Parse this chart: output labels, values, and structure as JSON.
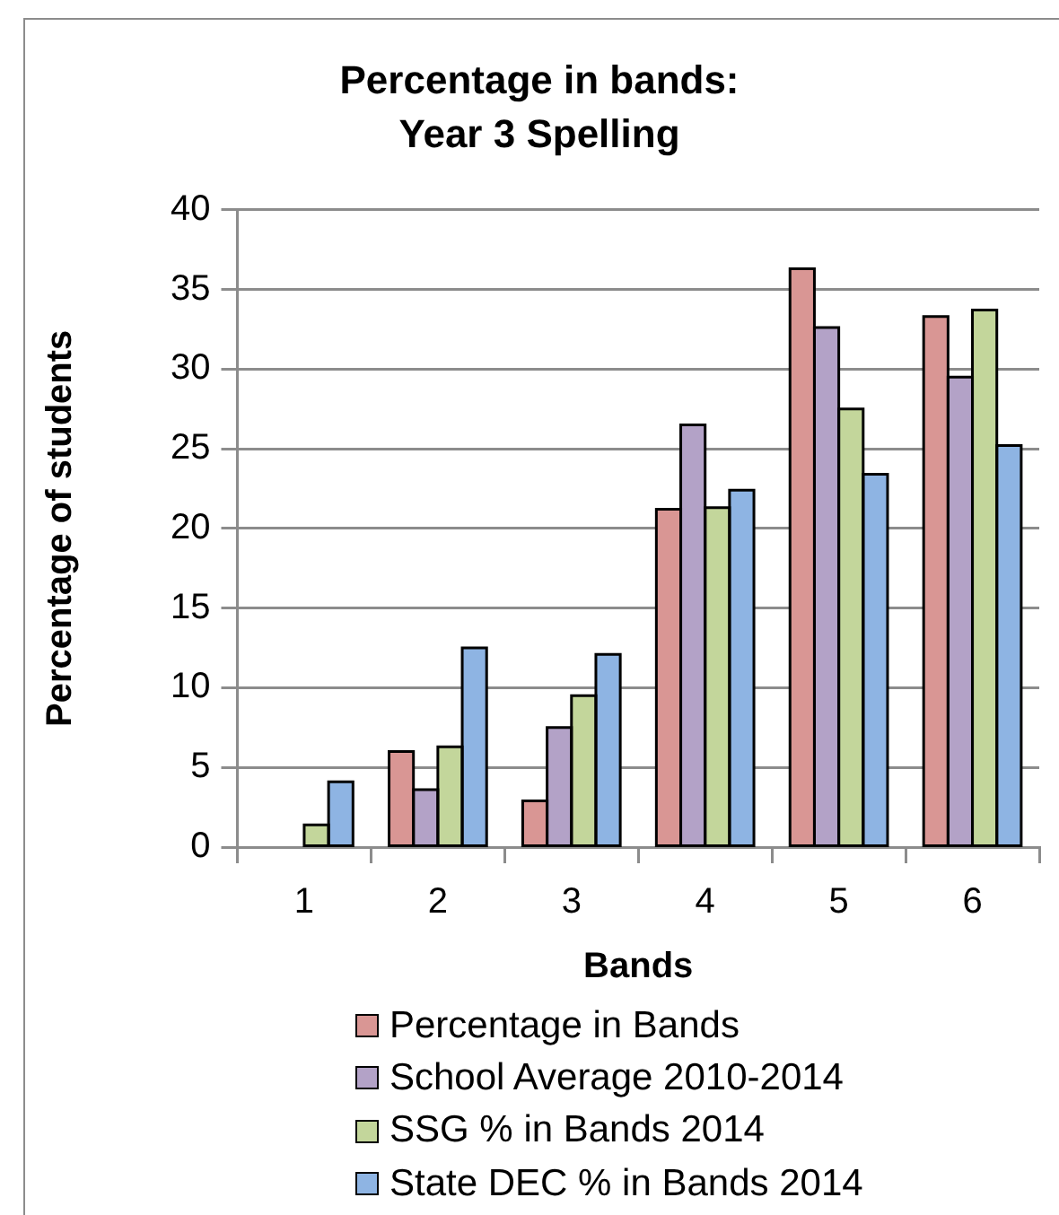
{
  "chart_data": {
    "type": "bar",
    "title": "Percentage in bands:\nYear 3 Spelling",
    "xlabel": "Bands",
    "ylabel": "Percentage of students",
    "categories": [
      "1",
      "2",
      "3",
      "4",
      "5",
      "6"
    ],
    "series": [
      {
        "name": "Percentage in Bands",
        "color": "#d99694",
        "values": [
          0,
          6.0,
          2.9,
          21.2,
          36.3,
          33.3
        ]
      },
      {
        "name": "School Average 2010-2014",
        "color": "#b3a2c7",
        "values": [
          0,
          3.6,
          7.5,
          26.5,
          32.6,
          29.5
        ]
      },
      {
        "name": "SSG % in Bands 2014",
        "color": "#c3d69b",
        "values": [
          1.4,
          6.3,
          9.5,
          21.3,
          27.5,
          33.7
        ]
      },
      {
        "name": "State DEC % in Bands 2014",
        "color": "#8eb4e3",
        "values": [
          4.1,
          12.5,
          12.1,
          22.4,
          23.4,
          25.2
        ]
      }
    ],
    "ylim": [
      0,
      40
    ],
    "yticks": [
      0,
      5,
      10,
      15,
      20,
      25,
      30,
      35,
      40
    ],
    "grid": "y",
    "legend": "bottom"
  }
}
